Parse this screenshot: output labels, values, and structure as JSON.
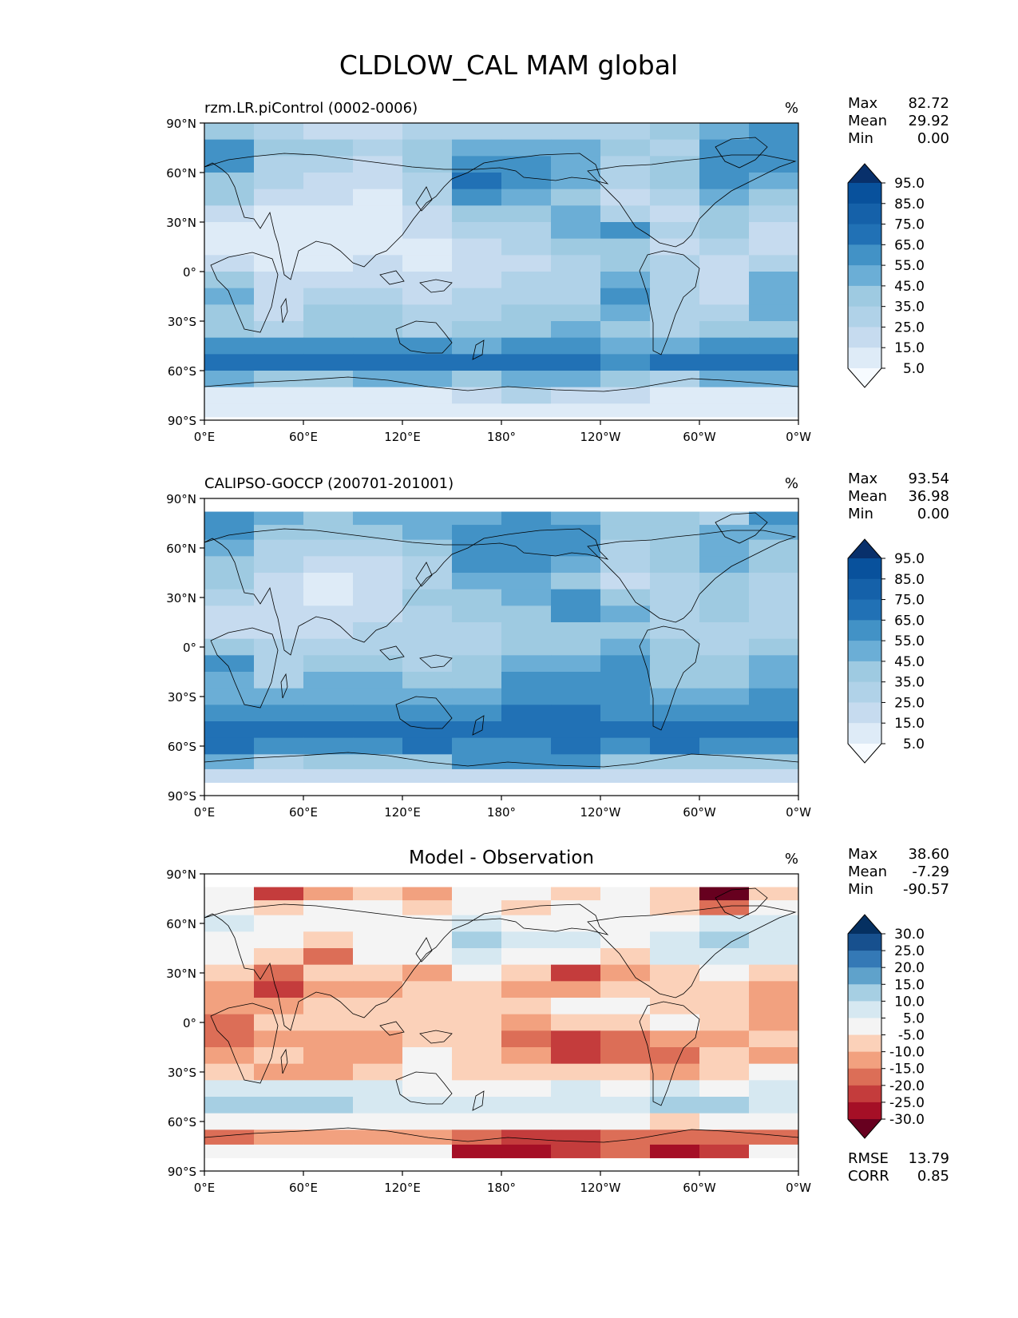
{
  "figure": {
    "title": "CLDLOW_CAL MAM global"
  },
  "colors": {
    "blues": [
      "#f7fbff",
      "#deebf7",
      "#c6dbef",
      "#b0d2e8",
      "#9ecae1",
      "#6baed6",
      "#4292c6",
      "#2171b5",
      "#1561a9",
      "#08519c",
      "#08306b"
    ],
    "diff": [
      "#67001f",
      "#a50f26",
      "#c43c3c",
      "#dc6e57",
      "#f2a17f",
      "#fbd1b9",
      "#f4f4f4",
      "#d6e8f1",
      "#a6cfe3",
      "#5fa2cb",
      "#3479b6",
      "#17508e",
      "#053061"
    ],
    "land_outline": "#000000"
  },
  "chart_data": [
    {
      "type": "heatmap",
      "panel": "model",
      "title_left": "rzm.LR.piControl (0002-0006)",
      "title_center": "",
      "units": "%",
      "stats": [
        {
          "label": "Max",
          "value": "82.72"
        },
        {
          "label": "Mean",
          "value": "29.92"
        },
        {
          "label": "Min",
          "value": "0.00"
        }
      ],
      "colorbar": {
        "levels": [
          "95.0",
          "85.0",
          "75.0",
          "65.0",
          "55.0",
          "45.0",
          "35.0",
          "25.0",
          "15.0",
          "5.0"
        ],
        "extend": "both"
      },
      "xlabel_ticks": [
        "0°E",
        "60°E",
        "120°E",
        "180°",
        "120°W",
        "60°W",
        "0°W"
      ],
      "ylabel_ticks": [
        "90°N",
        "60°N",
        "30°N",
        "0°",
        "30°S",
        "60°S",
        "90°S"
      ],
      "xlim": [
        0,
        360
      ],
      "ylim": [
        -90,
        90
      ],
      "data_extent_lat": [
        -88,
        90
      ],
      "field": {
        "lat": [
          85,
          75,
          65,
          55,
          45,
          35,
          25,
          15,
          5,
          -5,
          -15,
          -25,
          -35,
          -45,
          -55,
          -65,
          -75,
          -85
        ],
        "lon_centers": [
          15,
          45,
          75,
          105,
          135,
          165,
          195,
          225,
          255,
          285,
          315,
          345
        ],
        "values": [
          [
            40,
            30,
            22,
            20,
            25,
            28,
            30,
            32,
            30,
            40,
            45,
            55
          ],
          [
            60,
            40,
            35,
            30,
            35,
            45,
            50,
            45,
            40,
            30,
            55,
            60
          ],
          [
            55,
            30,
            25,
            20,
            35,
            60,
            55,
            50,
            30,
            35,
            60,
            60
          ],
          [
            40,
            25,
            15,
            15,
            30,
            65,
            60,
            45,
            25,
            40,
            55,
            50
          ],
          [
            35,
            20,
            15,
            10,
            25,
            55,
            50,
            40,
            20,
            30,
            45,
            35
          ],
          [
            15,
            10,
            8,
            10,
            20,
            35,
            40,
            45,
            30,
            20,
            35,
            25
          ],
          [
            10,
            5,
            5,
            8,
            15,
            25,
            30,
            45,
            55,
            25,
            35,
            20
          ],
          [
            8,
            5,
            5,
            10,
            10,
            18,
            25,
            35,
            40,
            20,
            30,
            15
          ],
          [
            15,
            10,
            10,
            15,
            12,
            15,
            20,
            30,
            35,
            25,
            20,
            25
          ],
          [
            35,
            20,
            15,
            20,
            15,
            20,
            25,
            25,
            45,
            30,
            15,
            45
          ],
          [
            45,
            20,
            30,
            25,
            20,
            25,
            30,
            30,
            55,
            30,
            20,
            50
          ],
          [
            35,
            15,
            40,
            35,
            25,
            30,
            40,
            35,
            45,
            25,
            25,
            45
          ],
          [
            40,
            30,
            35,
            40,
            30,
            35,
            40,
            45,
            35,
            30,
            35,
            40
          ],
          [
            55,
            55,
            55,
            60,
            55,
            50,
            55,
            60,
            50,
            45,
            55,
            55
          ],
          [
            70,
            70,
            70,
            70,
            70,
            65,
            70,
            70,
            60,
            70,
            70,
            70
          ],
          [
            45,
            40,
            40,
            45,
            45,
            40,
            45,
            45,
            40,
            30,
            45,
            45
          ],
          [
            10,
            10,
            12,
            8,
            10,
            20,
            25,
            20,
            15,
            10,
            10,
            10
          ],
          [
            5,
            5,
            5,
            5,
            5,
            5,
            5,
            5,
            5,
            5,
            5,
            5
          ]
        ]
      }
    },
    {
      "type": "heatmap",
      "panel": "observation",
      "title_left": "CALIPSO-GOCCP (200701-201001)",
      "title_center": "",
      "units": "%",
      "stats": [
        {
          "label": "Max",
          "value": "93.54"
        },
        {
          "label": "Mean",
          "value": "36.98"
        },
        {
          "label": "Min",
          "value": "0.00"
        }
      ],
      "colorbar": {
        "levels": [
          "95.0",
          "85.0",
          "75.0",
          "65.0",
          "55.0",
          "45.0",
          "35.0",
          "25.0",
          "15.0",
          "5.0"
        ],
        "extend": "both"
      },
      "xlabel_ticks": [
        "0°E",
        "60°E",
        "120°E",
        "180°",
        "120°W",
        "60°W",
        "0°W"
      ],
      "ylabel_ticks": [
        "90°N",
        "60°N",
        "30°N",
        "0°",
        "30°S",
        "60°S",
        "90°S"
      ],
      "xlim": [
        0,
        360
      ],
      "ylim": [
        -90,
        90
      ],
      "data_extent_lat": [
        -82,
        82
      ],
      "field": {
        "lat": [
          78,
          70,
          60,
          50,
          40,
          30,
          20,
          10,
          0,
          -10,
          -20,
          -30,
          -40,
          -50,
          -60,
          -70,
          -78
        ],
        "lon_centers": [
          15,
          45,
          75,
          105,
          135,
          165,
          195,
          225,
          255,
          285,
          315,
          345
        ],
        "values": [
          [
            60,
            45,
            40,
            45,
            45,
            50,
            55,
            50,
            40,
            35,
            30,
            55
          ],
          [
            55,
            40,
            35,
            40,
            45,
            55,
            60,
            55,
            40,
            35,
            45,
            50
          ],
          [
            45,
            30,
            25,
            30,
            35,
            55,
            60,
            55,
            30,
            35,
            45,
            40
          ],
          [
            40,
            25,
            15,
            20,
            30,
            55,
            55,
            45,
            25,
            35,
            45,
            35
          ],
          [
            35,
            20,
            10,
            15,
            30,
            45,
            50,
            40,
            20,
            30,
            40,
            30
          ],
          [
            25,
            15,
            12,
            15,
            35,
            40,
            50,
            55,
            40,
            30,
            35,
            30
          ],
          [
            20,
            15,
            15,
            20,
            30,
            35,
            40,
            55,
            50,
            30,
            35,
            25
          ],
          [
            20,
            20,
            20,
            25,
            25,
            30,
            35,
            40,
            40,
            30,
            30,
            25
          ],
          [
            35,
            25,
            25,
            25,
            25,
            30,
            35,
            40,
            45,
            35,
            30,
            35
          ],
          [
            55,
            30,
            40,
            35,
            30,
            35,
            45,
            45,
            60,
            40,
            35,
            50
          ],
          [
            45,
            30,
            50,
            45,
            35,
            40,
            55,
            55,
            55,
            40,
            40,
            50
          ],
          [
            50,
            45,
            50,
            50,
            45,
            50,
            55,
            55,
            55,
            45,
            50,
            55
          ],
          [
            60,
            60,
            60,
            60,
            55,
            60,
            65,
            65,
            60,
            60,
            60,
            60
          ],
          [
            70,
            70,
            65,
            70,
            70,
            65,
            70,
            70,
            65,
            70,
            70,
            65
          ],
          [
            65,
            60,
            60,
            60,
            65,
            60,
            60,
            65,
            60,
            65,
            60,
            60
          ],
          [
            45,
            30,
            35,
            35,
            40,
            55,
            60,
            55,
            40,
            40,
            35,
            40
          ],
          [
            20,
            15,
            15,
            15,
            15,
            15,
            15,
            15,
            15,
            15,
            15,
            15
          ]
        ]
      }
    },
    {
      "type": "heatmap",
      "panel": "difference",
      "title_left": "",
      "title_center": "Model - Observation",
      "units": "%",
      "stats": [
        {
          "label": "Max",
          "value": "38.60"
        },
        {
          "label": "Mean",
          "value": "-7.29"
        },
        {
          "label": "Min",
          "value": "-90.57"
        }
      ],
      "colorbar": {
        "levels": [
          "30.0",
          "25.0",
          "20.0",
          "15.0",
          "10.0",
          "5.0",
          "-5.0",
          "-10.0",
          "-15.0",
          "-20.0",
          "-25.0",
          "-30.0"
        ],
        "extend": "both"
      },
      "metrics": [
        {
          "label": "RMSE",
          "value": "13.79"
        },
        {
          "label": "CORR",
          "value": "0.85"
        }
      ],
      "xlabel_ticks": [
        "0°E",
        "60°E",
        "120°E",
        "180°",
        "120°W",
        "60°W",
        "0°W"
      ],
      "ylabel_ticks": [
        "90°N",
        "60°N",
        "30°N",
        "0°",
        "30°S",
        "60°S",
        "90°S"
      ],
      "xlim": [
        0,
        360
      ],
      "ylim": [
        -90,
        90
      ],
      "data_extent_lat": [
        -82,
        82
      ],
      "field": {
        "lat": [
          78,
          70,
          60,
          50,
          40,
          30,
          20,
          10,
          0,
          -10,
          -20,
          -30,
          -40,
          -50,
          -60,
          -70,
          -78
        ],
        "lon_centers": [
          15,
          45,
          75,
          105,
          135,
          165,
          195,
          225,
          255,
          285,
          315,
          345
        ],
        "values": [
          [
            -5,
            -25,
            -15,
            -10,
            -15,
            -5,
            -5,
            -10,
            -5,
            -10,
            -35,
            -10
          ],
          [
            -5,
            -10,
            -5,
            -5,
            -10,
            -5,
            -10,
            -5,
            -5,
            -10,
            -20,
            -5
          ],
          [
            5,
            0,
            0,
            -5,
            -5,
            5,
            0,
            0,
            -5,
            0,
            5,
            5
          ],
          [
            0,
            -5,
            -10,
            -5,
            0,
            10,
            5,
            5,
            0,
            5,
            10,
            5
          ],
          [
            0,
            -10,
            -20,
            -5,
            -5,
            5,
            0,
            -5,
            -10,
            5,
            5,
            5
          ],
          [
            -10,
            -20,
            -10,
            -10,
            -15,
            -5,
            -10,
            -25,
            -15,
            -10,
            -5,
            -10
          ],
          [
            -15,
            -25,
            -15,
            -15,
            -10,
            -10,
            -15,
            -15,
            -10,
            -10,
            -10,
            -15
          ],
          [
            -15,
            -15,
            -10,
            -10,
            -10,
            -10,
            -10,
            -5,
            -5,
            -10,
            -10,
            -15
          ],
          [
            -20,
            -10,
            -10,
            -10,
            -10,
            -10,
            -15,
            -10,
            -10,
            -5,
            -10,
            -15
          ],
          [
            -20,
            -15,
            -15,
            -15,
            -10,
            -10,
            -20,
            -25,
            -20,
            -15,
            -15,
            -10
          ],
          [
            -15,
            -10,
            -15,
            -15,
            -5,
            -10,
            -15,
            -25,
            -20,
            -20,
            -10,
            -15
          ],
          [
            -10,
            -15,
            -15,
            -10,
            -5,
            -10,
            -10,
            -10,
            -10,
            -15,
            -10,
            -5
          ],
          [
            5,
            5,
            5,
            5,
            0,
            0,
            0,
            5,
            0,
            5,
            0,
            5
          ],
          [
            10,
            10,
            10,
            5,
            5,
            5,
            5,
            5,
            5,
            10,
            10,
            5
          ],
          [
            0,
            -5,
            -5,
            0,
            -5,
            -5,
            -5,
            -5,
            -5,
            -10,
            -5,
            -5
          ],
          [
            -20,
            -15,
            -15,
            -15,
            -15,
            -20,
            -25,
            -25,
            -20,
            -20,
            -20,
            -20
          ],
          [
            -5,
            -5,
            -5,
            -5,
            -5,
            -30,
            -30,
            -25,
            -20,
            -30,
            -25,
            -5
          ]
        ]
      }
    }
  ]
}
